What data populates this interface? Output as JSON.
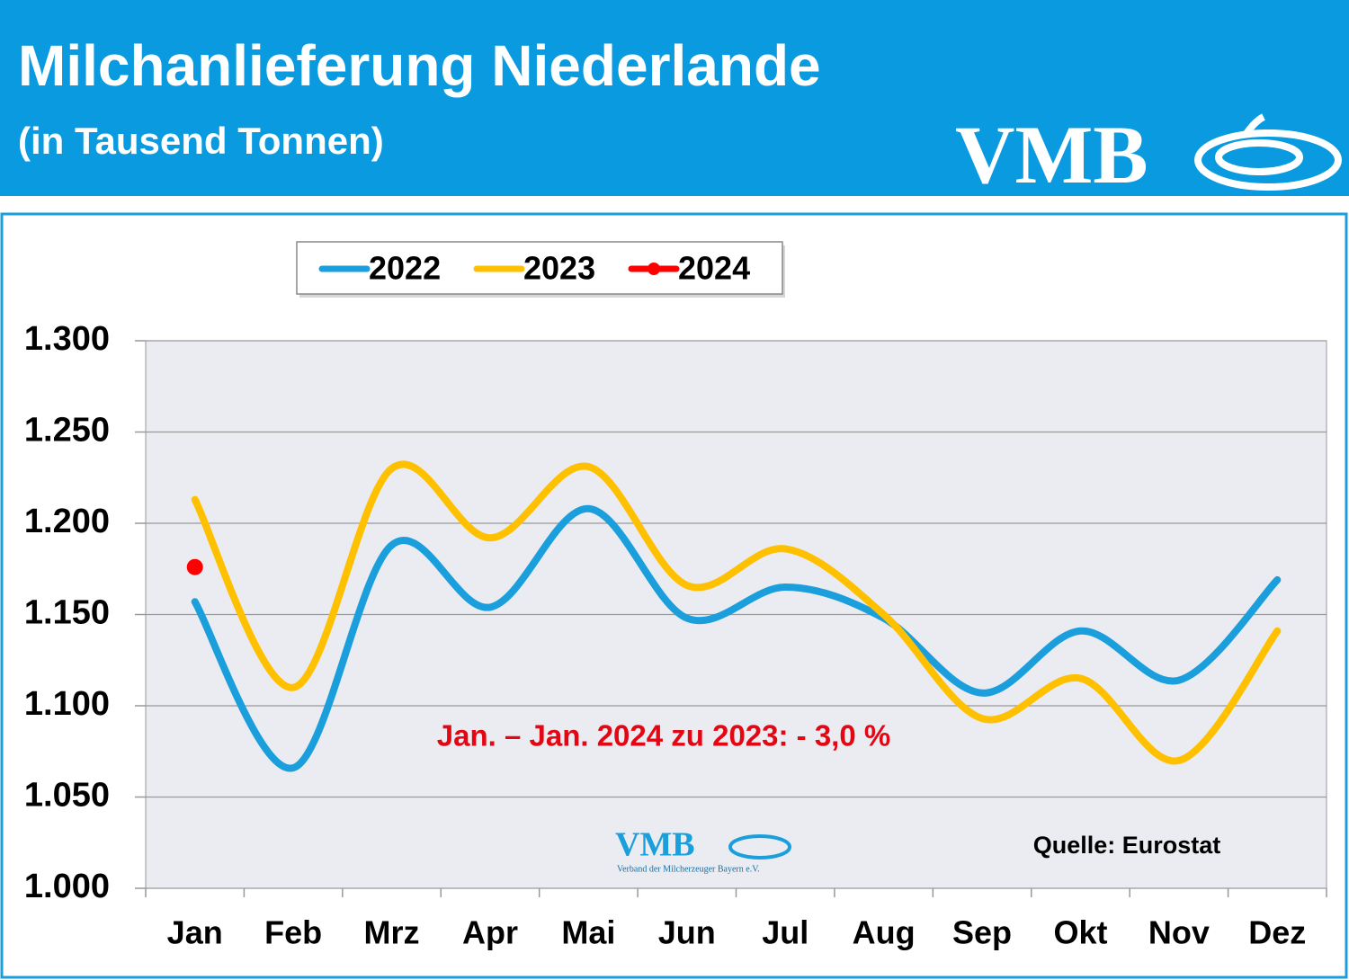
{
  "chart_data": {
    "type": "line",
    "title": "Milchanlieferung Niederlande",
    "subtitle": "(in Tausend Tonnen)",
    "logo_text": "VMB",
    "logo_subtitle": "Verband der Milcherzeuger Bayern e.V.",
    "annotation": "Jan. – Jan. 2024 zu 2023: - 3,0 %",
    "source": "Quelle: Eurostat",
    "categories": [
      "Jan",
      "Feb",
      "Mrz",
      "Apr",
      "Mai",
      "Jun",
      "Jul",
      "Aug",
      "Sep",
      "Okt",
      "Nov",
      "Dez"
    ],
    "series": [
      {
        "name": "2022",
        "color": "#1a9fdc",
        "values": [
          1157,
          1066,
          1188,
          1154,
          1208,
          1148,
          1165,
          1148,
          1107,
          1141,
          1114,
          1169
        ]
      },
      {
        "name": "2023",
        "color": "#ffc000",
        "values": [
          1213,
          1110,
          1230,
          1192,
          1231,
          1166,
          1186,
          1150,
          1093,
          1115,
          1070,
          1141
        ]
      },
      {
        "name": "2024",
        "color": "#ff0000",
        "values": [
          1176,
          null,
          null,
          null,
          null,
          null,
          null,
          null,
          null,
          null,
          null,
          null
        ]
      }
    ],
    "ylim": [
      1000,
      1300
    ],
    "yticks": [
      {
        "value": 1000,
        "label": "1.000"
      },
      {
        "value": 1050,
        "label": "1.050"
      },
      {
        "value": 1100,
        "label": "1.100"
      },
      {
        "value": 1150,
        "label": "1.150"
      },
      {
        "value": 1200,
        "label": "1.200"
      },
      {
        "value": 1250,
        "label": "1.250"
      },
      {
        "value": 1300,
        "label": "1.300"
      }
    ],
    "grid": true,
    "legend": "top"
  }
}
